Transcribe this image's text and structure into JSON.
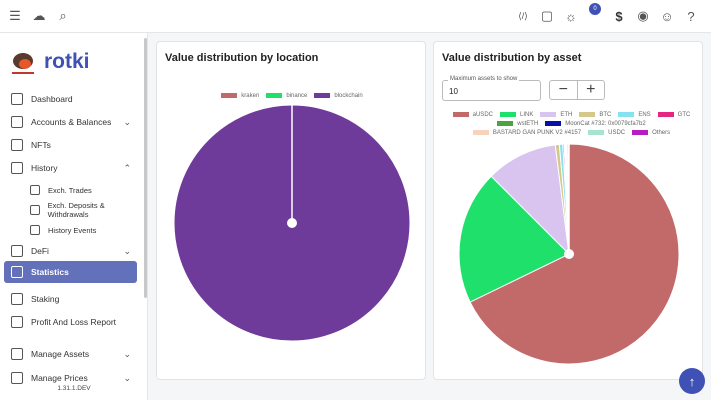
{
  "topbar": {
    "notification_count": "0",
    "currency_symbol": "$"
  },
  "sidebar": {
    "brand": "rotki",
    "version": "1.31.1.DEV",
    "items": [
      {
        "label": "Dashboard",
        "icon": "dashboard-icon"
      },
      {
        "label": "Accounts & Balances",
        "icon": "wallet-icon",
        "chevron": "down"
      },
      {
        "label": "NFTs",
        "icon": "image-icon"
      },
      {
        "label": "History",
        "icon": "history-icon",
        "chevron": "up"
      },
      {
        "label": "Exch. Trades",
        "icon": "swap-icon",
        "sub": true
      },
      {
        "label": "Exch. Deposits & Withdrawals",
        "icon": "bank-icon",
        "sub": true
      },
      {
        "label": "History Events",
        "icon": "events-icon",
        "sub": true
      },
      {
        "label": "DeFi",
        "icon": "chart-line-icon",
        "chevron": "down"
      },
      {
        "label": "Statistics",
        "icon": "statistics-icon",
        "active": true
      },
      {
        "label": "Staking",
        "icon": "staking-icon"
      },
      {
        "label": "Profit And Loss Report",
        "icon": "report-icon"
      },
      {
        "label": "Manage Assets",
        "icon": "database-icon",
        "chevron": "down"
      },
      {
        "label": "Manage Prices",
        "icon": "price-icon",
        "chevron": "down"
      }
    ]
  },
  "location_card": {
    "title": "Value distribution by location",
    "chart_data": {
      "type": "pie",
      "series": [
        {
          "name": "kraken",
          "value": 0,
          "color": "#c26a6a"
        },
        {
          "name": "binance",
          "value": 0,
          "color": "#1fe06a"
        },
        {
          "name": "blockchain",
          "value": 100,
          "color": "#6f3b9a"
        }
      ]
    }
  },
  "asset_card": {
    "title": "Value distribution by asset",
    "max_assets_label": "Maximum assets to show",
    "max_assets_value": "10",
    "minus": "−",
    "plus": "+",
    "chart_data": {
      "type": "pie",
      "series": [
        {
          "name": "aUSDC",
          "value": 67.8,
          "color": "#c26a6a"
        },
        {
          "name": "LINK",
          "value": 19.7,
          "color": "#1fe06a"
        },
        {
          "name": "ETH",
          "value": 10.5,
          "color": "#d9c3ef"
        },
        {
          "name": "BTC",
          "value": 0.6,
          "color": "#d4c98a"
        },
        {
          "name": "ENS",
          "value": 0.5,
          "color": "#86e1f0"
        },
        {
          "name": "GTC",
          "value": 0.2,
          "color": "#e5257f"
        },
        {
          "name": "wstETH",
          "value": 0.15,
          "color": "#4ea33f"
        },
        {
          "name": "MoonCat #732: 0x0079cfa7b2",
          "value": 0.1,
          "color": "#0a0fa8"
        },
        {
          "name": "BASTARD GAN PUNK V2 #4157",
          "value": 0.1,
          "color": "#f7d3bd"
        },
        {
          "name": "USDC",
          "value": 0.2,
          "color": "#a7e4d0"
        },
        {
          "name": "Others",
          "value": 0.15,
          "color": "#b71cc3"
        }
      ]
    }
  }
}
